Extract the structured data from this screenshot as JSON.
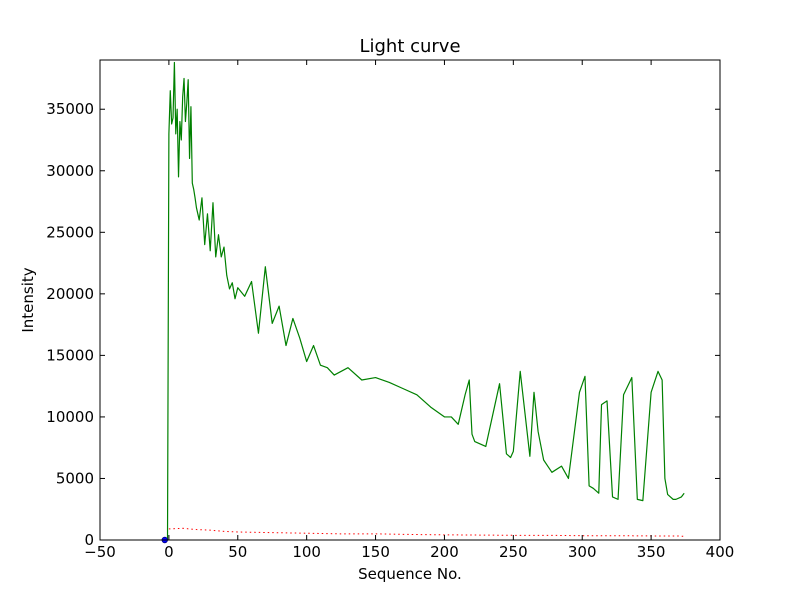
{
  "chart_data": {
    "type": "line",
    "title": "Light curve",
    "xlabel": "Sequence No.",
    "ylabel": "Intensity",
    "xlim": [
      -50,
      400
    ],
    "ylim": [
      0,
      39000
    ],
    "x_ticks": [
      -50,
      0,
      50,
      100,
      150,
      200,
      250,
      300,
      350,
      400
    ],
    "y_ticks": [
      0,
      5000,
      10000,
      15000,
      20000,
      25000,
      30000,
      35000
    ],
    "grid": false,
    "legend": "none",
    "colors": {
      "main": "#008000",
      "background": "#ff0000",
      "marker": "#0000ff"
    },
    "series": [
      {
        "style": "solid",
        "color": "#008000",
        "x": [
          -1,
          0,
          1,
          2,
          3,
          4,
          5,
          6,
          7,
          8,
          9,
          10,
          11,
          12,
          13,
          14,
          15,
          16,
          17,
          18,
          19,
          20,
          22,
          24,
          26,
          28,
          30,
          32,
          34,
          36,
          38,
          40,
          42,
          44,
          46,
          48,
          50,
          55,
          60,
          65,
          70,
          75,
          80,
          85,
          90,
          95,
          100,
          105,
          110,
          115,
          120,
          130,
          140,
          150,
          160,
          170,
          180,
          190,
          200,
          205,
          210,
          215,
          218,
          220,
          222,
          230,
          240,
          245,
          248,
          250,
          255,
          262,
          265,
          268,
          272,
          275,
          278,
          285,
          290,
          298,
          302,
          305,
          308,
          312,
          314,
          318,
          322,
          326,
          330,
          336,
          340,
          344,
          350,
          355,
          358,
          360,
          362,
          364,
          366,
          368,
          372,
          374
        ],
        "values": [
          0,
          33000,
          36500,
          33800,
          34300,
          38800,
          33000,
          35000,
          29500,
          34000,
          32500,
          36000,
          37500,
          34000,
          35500,
          37400,
          31000,
          35200,
          29000,
          28500,
          27800,
          27000,
          26000,
          27800,
          24000,
          26500,
          23500,
          27400,
          23000,
          24800,
          23000,
          23800,
          21500,
          20400,
          20900,
          19600,
          20500,
          19800,
          21000,
          16800,
          22200,
          17600,
          19000,
          15800,
          18000,
          16400,
          14500,
          15800,
          14200,
          14000,
          13400,
          14000,
          13000,
          13200,
          12800,
          12300,
          11800,
          10800,
          10000,
          10000,
          9400,
          11800,
          13000,
          8600,
          8000,
          7600,
          12700,
          7000,
          6700,
          7200,
          13700,
          6800,
          12000,
          8800,
          6500,
          6000,
          5500,
          6000,
          5000,
          12000,
          13300,
          4400,
          4200,
          3800,
          11000,
          11300,
          3500,
          3300,
          11800,
          13200,
          3300,
          3200,
          12000,
          13700,
          13000,
          5000,
          3700,
          3500,
          3300,
          3300,
          3500,
          3800
        ]
      },
      {
        "style": "dotted",
        "color": "#ff0000",
        "x": [
          0,
          10,
          20,
          30,
          40,
          50,
          75,
          100,
          125,
          150,
          175,
          200,
          225,
          250,
          275,
          300,
          325,
          350,
          370,
          374
        ],
        "values": [
          900,
          950,
          850,
          800,
          700,
          650,
          600,
          550,
          500,
          500,
          450,
          420,
          400,
          380,
          380,
          350,
          350,
          330,
          320,
          300
        ]
      }
    ],
    "markers": [
      {
        "x": -3,
        "y": 0,
        "color": "#0000ff"
      }
    ]
  }
}
